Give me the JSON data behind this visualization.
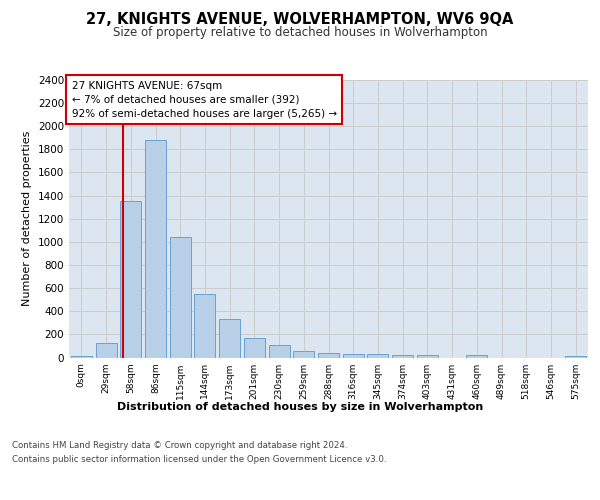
{
  "title": "27, KNIGHTS AVENUE, WOLVERHAMPTON, WV6 9QA",
  "subtitle": "Size of property relative to detached houses in Wolverhampton",
  "xlabel": "Distribution of detached houses by size in Wolverhampton",
  "ylabel": "Number of detached properties",
  "categories": [
    "0sqm",
    "29sqm",
    "58sqm",
    "86sqm",
    "115sqm",
    "144sqm",
    "173sqm",
    "201sqm",
    "230sqm",
    "259sqm",
    "288sqm",
    "316sqm",
    "345sqm",
    "374sqm",
    "403sqm",
    "431sqm",
    "460sqm",
    "489sqm",
    "518sqm",
    "546sqm",
    "575sqm"
  ],
  "values": [
    15,
    125,
    1350,
    1880,
    1040,
    545,
    335,
    165,
    110,
    60,
    40,
    30,
    28,
    25,
    20,
    0,
    20,
    0,
    0,
    0,
    15
  ],
  "bar_color": "#b8cfe8",
  "bar_edge_color": "#6aa0d4",
  "vline_x": 1.68,
  "vline_color": "#cc0000",
  "annotation_text_line1": "27 KNIGHTS AVENUE: 67sqm",
  "annotation_text_line2": "← 7% of detached houses are smaller (392)",
  "annotation_text_line3": "92% of semi-detached houses are larger (5,265) →",
  "annotation_box_facecolor": "#ffffff",
  "annotation_box_edgecolor": "#cc0000",
  "grid_color": "#cccccc",
  "bg_color": "#dce6f0",
  "footer_line1": "Contains HM Land Registry data © Crown copyright and database right 2024.",
  "footer_line2": "Contains public sector information licensed under the Open Government Licence v3.0.",
  "ylim": [
    0,
    2400
  ],
  "yticks": [
    0,
    200,
    400,
    600,
    800,
    1000,
    1200,
    1400,
    1600,
    1800,
    2000,
    2200,
    2400
  ]
}
